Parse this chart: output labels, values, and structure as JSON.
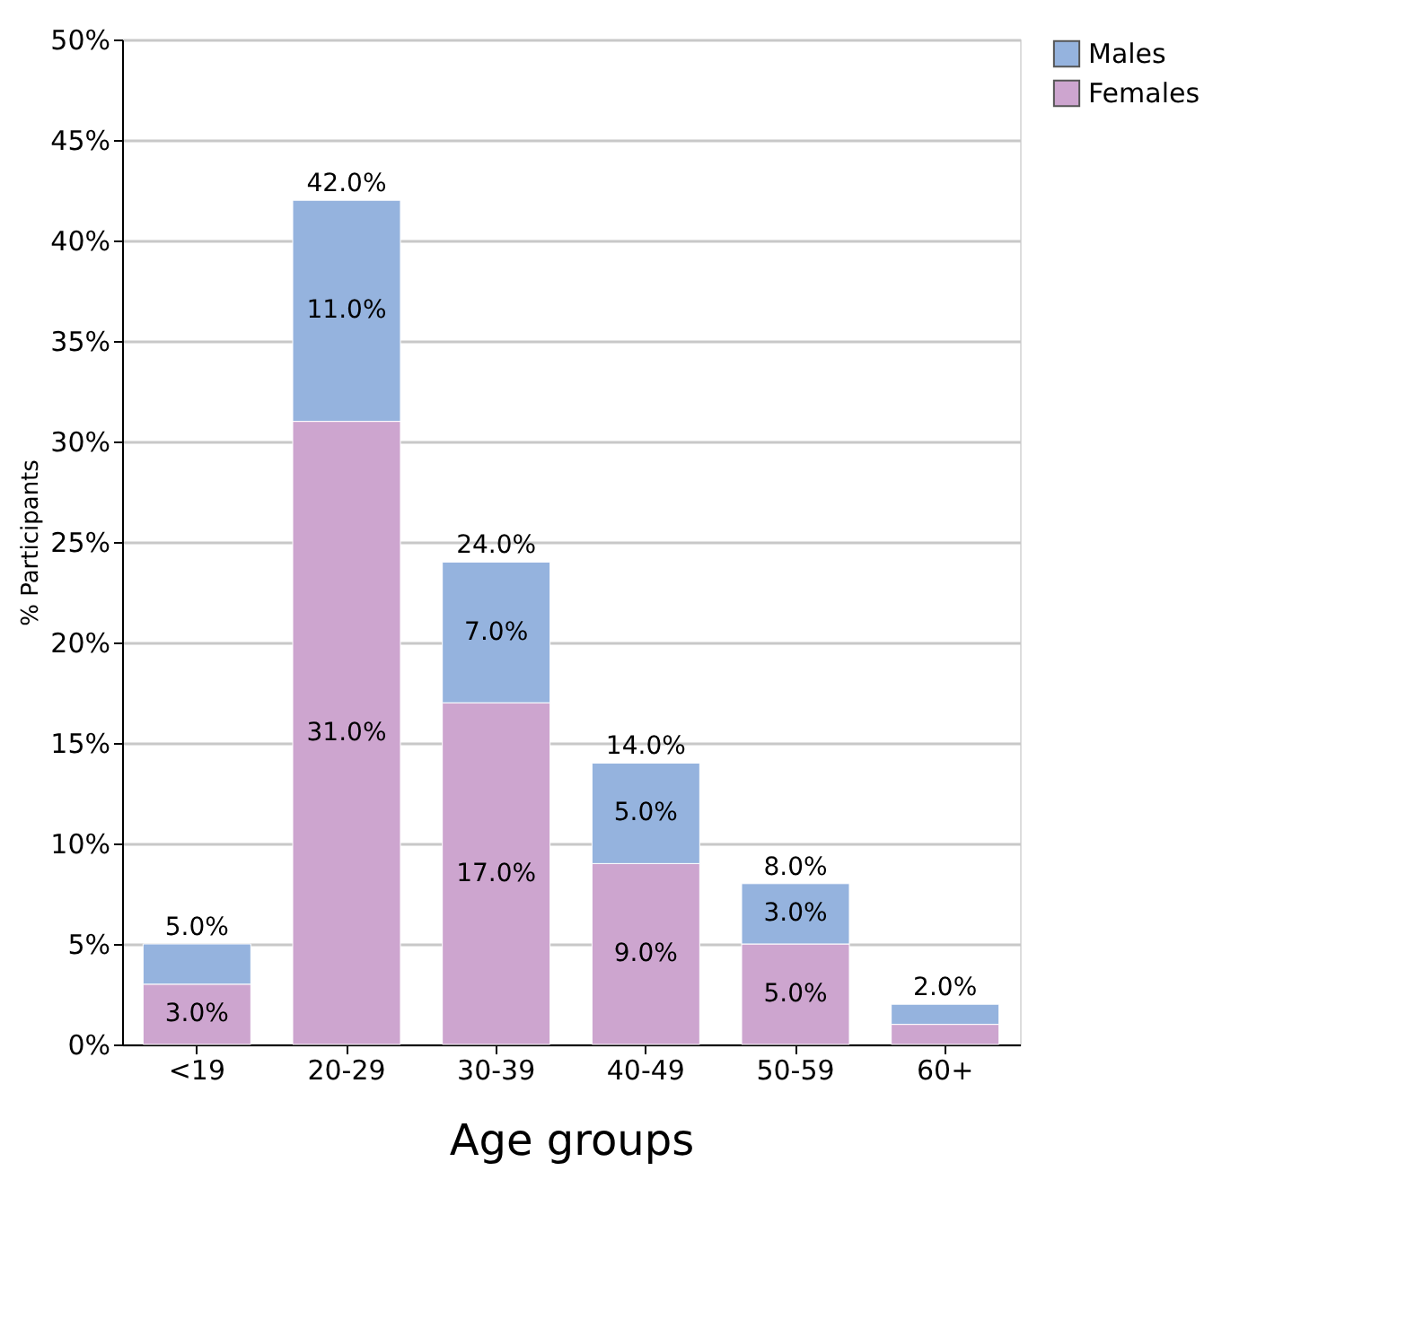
{
  "chart_data": {
    "type": "bar",
    "stacked": true,
    "xlabel": "Age groups",
    "ylabel": "% Participants",
    "categories": [
      "<19",
      "20-29",
      "30-39",
      "40-49",
      "50-59",
      "60+"
    ],
    "series": [
      {
        "name": "Females",
        "color": "#cda5cf",
        "values": [
          3,
          31,
          17,
          9,
          5,
          1
        ],
        "value_labels": [
          "3.0%",
          "31.0%",
          "17.0%",
          "9.0%",
          "5.0%",
          null
        ]
      },
      {
        "name": "Males",
        "color": "#95b3de",
        "values": [
          2,
          11,
          7,
          5,
          3,
          1
        ],
        "value_labels": [
          null,
          "11.0%",
          "7.0%",
          "5.0%",
          "3.0%",
          null
        ]
      }
    ],
    "totals": [
      "5.0%",
      "42.0%",
      "24.0%",
      "14.0%",
      "8.0%",
      "2.0%"
    ],
    "ylim": [
      0,
      50
    ],
    "yticks": [
      {
        "value": 0,
        "label": "0%"
      },
      {
        "value": 5,
        "label": "5%"
      },
      {
        "value": 10,
        "label": "10%"
      },
      {
        "value": 15,
        "label": "15%"
      },
      {
        "value": 20,
        "label": "20%"
      },
      {
        "value": 25,
        "label": "25%"
      },
      {
        "value": 30,
        "label": "30%"
      },
      {
        "value": 35,
        "label": "35%"
      },
      {
        "value": 40,
        "label": "40%"
      },
      {
        "value": 45,
        "label": "45%"
      },
      {
        "value": 50,
        "label": "50%"
      }
    ],
    "grid": "y",
    "legend": "top right"
  }
}
